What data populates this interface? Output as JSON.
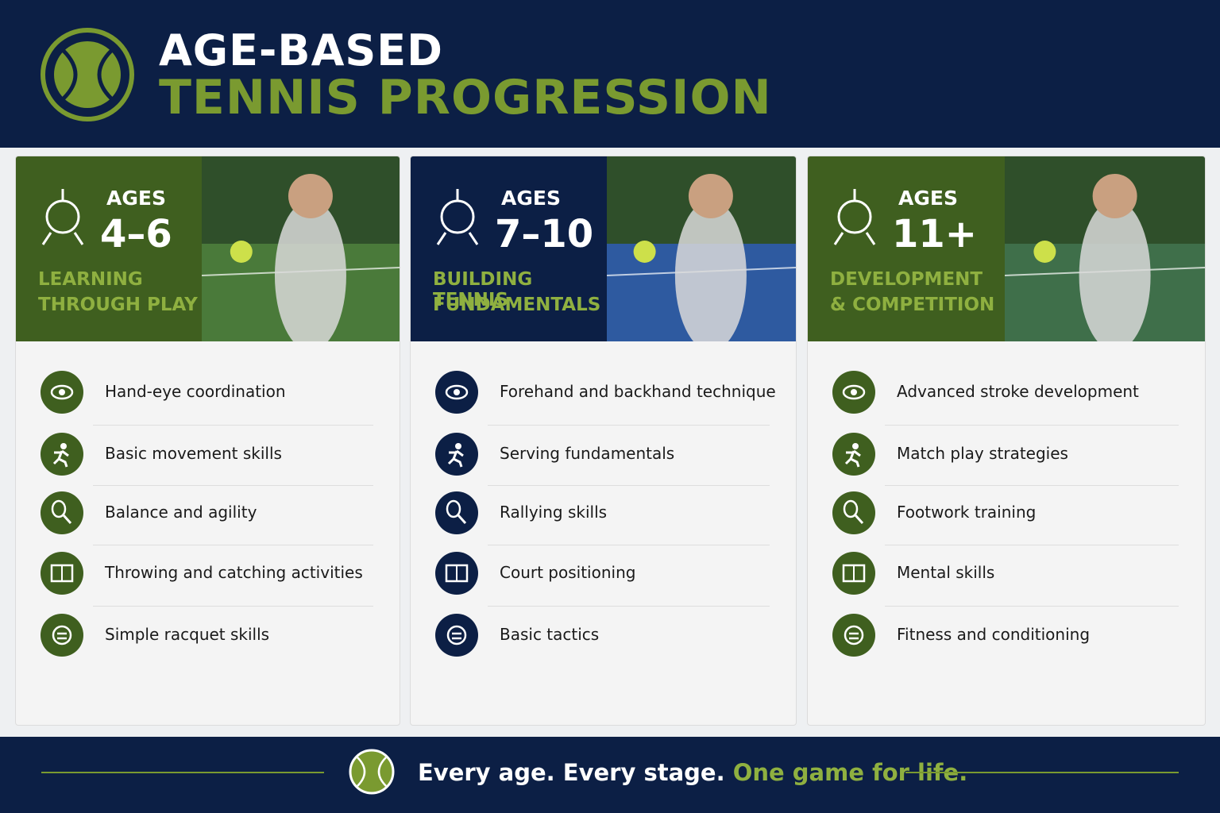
{
  "header": {
    "title_line1": "AGE-BASED",
    "title_line2": "TENNIS PROGRESSION"
  },
  "stages": [
    {
      "label": "AGES",
      "ages": "4–6",
      "subtitle": [
        "LEARNING",
        "THROUGH PLAY"
      ],
      "skills": [
        "Hand-eye coordination",
        "Basic movement skills",
        "Balance and agility",
        "Throwing and catching activities",
        "Simple racquet skills"
      ]
    },
    {
      "label": "AGES",
      "ages": "7–10",
      "subtitle": [
        "BUILDING TENNIS",
        "FUNDAMENTALS"
      ],
      "skills": [
        "Forehand and backhand technique",
        "Serving fundamentals",
        "Rallying skills",
        "Court positioning",
        "Basic tactics"
      ]
    },
    {
      "label": "AGES",
      "ages": "11+",
      "subtitle": [
        "DEVELOPMENT",
        "& COMPETITION"
      ],
      "skills": [
        "Advanced stroke development",
        "Match play strategies",
        "Footwork training",
        "Mental skills",
        "Fitness and conditioning"
      ]
    }
  ],
  "footer": {
    "tagline": "Every age. Every stage.",
    "highlight": "One game for life."
  }
}
